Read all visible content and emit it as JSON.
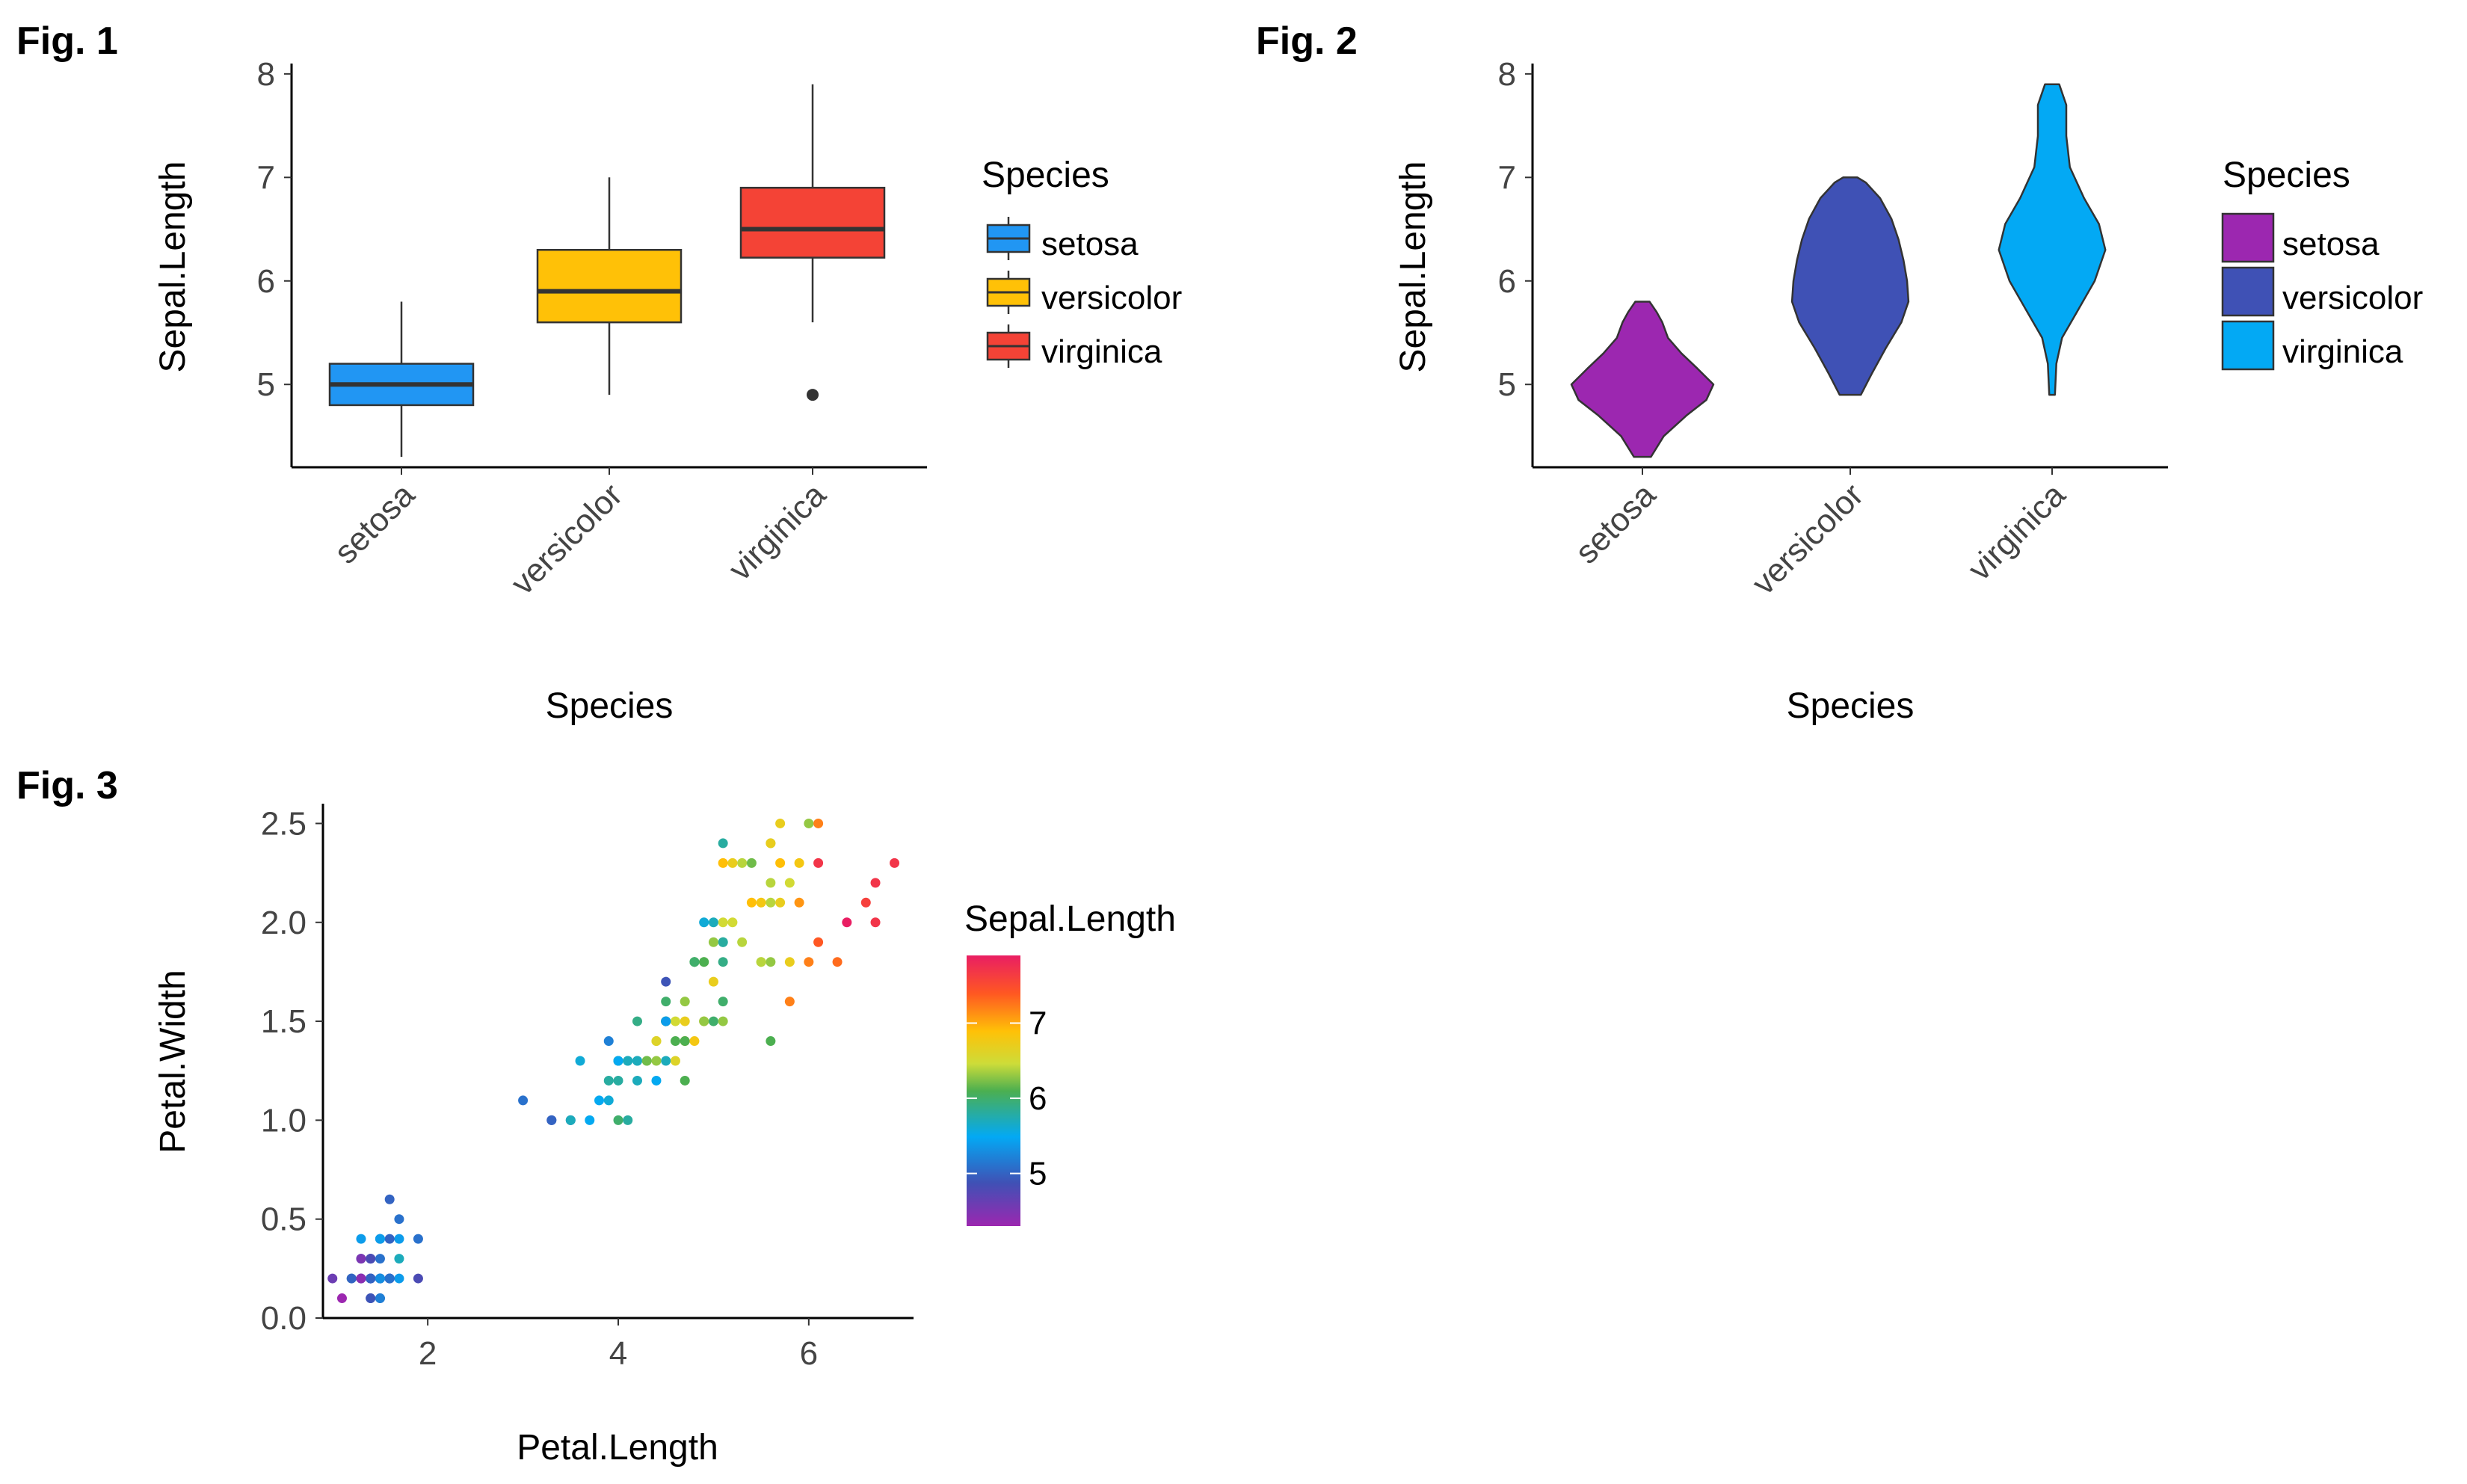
{
  "chart_data": [
    {
      "type": "box",
      "figure_label": "Fig.  1",
      "xlabel": "Species",
      "ylabel": "Sepal.Length",
      "categories": [
        "setosa",
        "versicolor",
        "virginica"
      ],
      "ylim": [
        4.2,
        8.1
      ],
      "yticks": [
        "5",
        "6",
        "7",
        "8"
      ],
      "boxes": [
        {
          "name": "setosa",
          "min": 4.3,
          "q1": 4.8,
          "median": 5.0,
          "q3": 5.2,
          "max": 5.8,
          "outliers": []
        },
        {
          "name": "versicolor",
          "min": 4.9,
          "q1": 5.6,
          "median": 5.9,
          "q3": 6.3,
          "max": 7.0,
          "outliers": []
        },
        {
          "name": "virginica",
          "min": 5.6,
          "q1": 6.225,
          "median": 6.5,
          "q3": 6.9,
          "max": 7.9,
          "outliers": [
            4.9
          ]
        }
      ],
      "colors": [
        "#2196F3",
        "#FFC107",
        "#F44336"
      ],
      "legend": {
        "title": "Species",
        "entries": [
          "setosa",
          "versicolor",
          "virginica"
        ],
        "position": "right"
      }
    },
    {
      "type": "violin",
      "figure_label": "Fig.  2",
      "xlabel": "Species",
      "ylabel": "Sepal.Length",
      "categories": [
        "setosa",
        "versicolor",
        "virginica"
      ],
      "ylim": [
        4.2,
        8.1
      ],
      "yticks": [
        "5",
        "6",
        "7",
        "8"
      ],
      "violins": [
        {
          "name": "setosa",
          "min": 4.3,
          "max": 5.8,
          "profile": [
            [
              4.3,
              0.12
            ],
            [
              4.5,
              0.3
            ],
            [
              4.7,
              0.62
            ],
            [
              4.85,
              0.9
            ],
            [
              5.0,
              1.0
            ],
            [
              5.15,
              0.78
            ],
            [
              5.3,
              0.55
            ],
            [
              5.45,
              0.36
            ],
            [
              5.6,
              0.28
            ],
            [
              5.7,
              0.2
            ],
            [
              5.8,
              0.1
            ]
          ]
        },
        {
          "name": "versicolor",
          "min": 4.9,
          "max": 7.0,
          "profile": [
            [
              4.9,
              0.15
            ],
            [
              5.1,
              0.3
            ],
            [
              5.35,
              0.5
            ],
            [
              5.6,
              0.72
            ],
            [
              5.8,
              0.82
            ],
            [
              6.0,
              0.8
            ],
            [
              6.2,
              0.75
            ],
            [
              6.4,
              0.68
            ],
            [
              6.6,
              0.58
            ],
            [
              6.8,
              0.42
            ],
            [
              6.95,
              0.22
            ],
            [
              7.0,
              0.1
            ]
          ]
        },
        {
          "name": "virginica",
          "min": 4.9,
          "max": 7.9,
          "profile": [
            [
              4.9,
              0.04
            ],
            [
              5.2,
              0.06
            ],
            [
              5.45,
              0.14
            ],
            [
              5.7,
              0.35
            ],
            [
              6.0,
              0.6
            ],
            [
              6.3,
              0.75
            ],
            [
              6.55,
              0.66
            ],
            [
              6.8,
              0.45
            ],
            [
              7.1,
              0.25
            ],
            [
              7.4,
              0.2
            ],
            [
              7.7,
              0.2
            ],
            [
              7.9,
              0.1
            ]
          ]
        }
      ],
      "colors": [
        "#9C27B0",
        "#3F51B5",
        "#03A9F4"
      ],
      "legend": {
        "title": "Species",
        "entries": [
          "setosa",
          "versicolor",
          "virginica"
        ],
        "position": "right"
      }
    },
    {
      "type": "scatter",
      "figure_label": "Fig.  3",
      "xlabel": "Petal.Length",
      "ylabel": "Petal.Width",
      "xlim": [
        0.9,
        7.1
      ],
      "ylim": [
        0.0,
        2.6
      ],
      "xticks": [
        2,
        4,
        6
      ],
      "yticks": [
        "0.0",
        "0.5",
        "1.0",
        "1.5",
        "2.0",
        "2.5"
      ],
      "color_legend": {
        "title": "Sepal.Length",
        "min": 4.3,
        "max": 7.9,
        "ticks": [
          "5",
          "6",
          "7"
        ],
        "position": "right"
      },
      "points": [
        [
          1.4,
          0.2,
          5.1
        ],
        [
          1.4,
          0.2,
          4.9
        ],
        [
          1.3,
          0.2,
          4.7
        ],
        [
          1.5,
          0.2,
          4.6
        ],
        [
          1.4,
          0.2,
          5.0
        ],
        [
          1.7,
          0.4,
          5.4
        ],
        [
          1.4,
          0.3,
          4.6
        ],
        [
          1.5,
          0.2,
          5.0
        ],
        [
          1.4,
          0.2,
          4.4
        ],
        [
          1.5,
          0.1,
          4.9
        ],
        [
          1.5,
          0.2,
          5.4
        ],
        [
          1.6,
          0.2,
          4.8
        ],
        [
          1.4,
          0.1,
          4.8
        ],
        [
          1.1,
          0.1,
          4.3
        ],
        [
          1.2,
          0.2,
          5.8
        ],
        [
          1.5,
          0.4,
          5.7
        ],
        [
          1.3,
          0.4,
          5.4
        ],
        [
          1.4,
          0.3,
          5.1
        ],
        [
          1.7,
          0.3,
          5.7
        ],
        [
          1.5,
          0.3,
          5.1
        ],
        [
          1.7,
          0.2,
          5.4
        ],
        [
          1.5,
          0.4,
          5.1
        ],
        [
          1.0,
          0.2,
          4.6
        ],
        [
          1.7,
          0.5,
          5.1
        ],
        [
          1.9,
          0.2,
          4.8
        ],
        [
          1.6,
          0.2,
          5.0
        ],
        [
          1.6,
          0.4,
          5.0
        ],
        [
          1.5,
          0.2,
          5.2
        ],
        [
          1.4,
          0.2,
          5.2
        ],
        [
          1.6,
          0.2,
          4.7
        ],
        [
          1.6,
          0.2,
          4.8
        ],
        [
          1.5,
          0.4,
          5.4
        ],
        [
          1.5,
          0.1,
          5.2
        ],
        [
          1.4,
          0.2,
          5.5
        ],
        [
          1.5,
          0.2,
          4.9
        ],
        [
          1.2,
          0.2,
          5.0
        ],
        [
          1.3,
          0.2,
          5.5
        ],
        [
          1.4,
          0.1,
          4.9
        ],
        [
          1.3,
          0.2,
          4.4
        ],
        [
          1.5,
          0.2,
          5.1
        ],
        [
          1.3,
          0.3,
          5.0
        ],
        [
          1.3,
          0.3,
          4.5
        ],
        [
          1.3,
          0.2,
          4.4
        ],
        [
          1.6,
          0.6,
          5.0
        ],
        [
          1.9,
          0.4,
          5.1
        ],
        [
          1.4,
          0.3,
          4.8
        ],
        [
          1.6,
          0.2,
          5.1
        ],
        [
          1.4,
          0.2,
          4.6
        ],
        [
          1.5,
          0.2,
          5.3
        ],
        [
          1.4,
          0.2,
          5.0
        ],
        [
          4.7,
          1.4,
          7.0
        ],
        [
          4.5,
          1.5,
          6.4
        ],
        [
          4.9,
          1.5,
          6.9
        ],
        [
          4.0,
          1.3,
          5.5
        ],
        [
          4.6,
          1.5,
          6.5
        ],
        [
          4.5,
          1.3,
          5.7
        ],
        [
          4.7,
          1.6,
          6.3
        ],
        [
          3.3,
          1.0,
          4.9
        ],
        [
          4.6,
          1.3,
          6.6
        ],
        [
          3.9,
          1.4,
          5.2
        ],
        [
          3.5,
          1.0,
          5.0
        ],
        [
          4.2,
          1.5,
          5.9
        ],
        [
          4.0,
          1.0,
          6.0
        ],
        [
          4.7,
          1.4,
          6.1
        ],
        [
          3.6,
          1.3,
          5.6
        ],
        [
          4.4,
          1.4,
          6.7
        ],
        [
          4.5,
          1.5,
          5.6
        ],
        [
          4.1,
          1.0,
          5.8
        ],
        [
          4.5,
          1.5,
          6.2
        ],
        [
          3.9,
          1.1,
          5.6
        ],
        [
          4.8,
          1.8,
          5.9
        ],
        [
          4.0,
          1.3,
          6.1
        ],
        [
          4.9,
          1.5,
          6.3
        ],
        [
          4.7,
          1.2,
          6.1
        ],
        [
          4.3,
          1.3,
          6.4
        ],
        [
          4.4,
          1.4,
          6.6
        ],
        [
          4.8,
          1.4,
          6.8
        ],
        [
          5.0,
          1.7,
          6.7
        ],
        [
          4.5,
          1.5,
          6.0
        ],
        [
          3.5,
          1.0,
          5.7
        ],
        [
          3.8,
          1.1,
          5.5
        ],
        [
          3.7,
          1.0,
          5.5
        ],
        [
          3.9,
          1.2,
          5.8
        ],
        [
          5.1,
          1.6,
          6.0
        ],
        [
          4.5,
          1.5,
          5.4
        ],
        [
          4.5,
          1.6,
          6.0
        ],
        [
          4.7,
          1.5,
          6.7
        ],
        [
          4.4,
          1.3,
          6.3
        ],
        [
          4.1,
          1.3,
          5.6
        ],
        [
          4.0,
          1.3,
          5.5
        ],
        [
          4.4,
          1.2,
          5.5
        ],
        [
          4.6,
          1.4,
          6.1
        ],
        [
          4.0,
          1.2,
          5.8
        ],
        [
          3.3,
          1.0,
          5.0
        ],
        [
          4.2,
          1.3,
          5.6
        ],
        [
          4.2,
          1.2,
          5.7
        ],
        [
          4.2,
          1.3,
          5.7
        ],
        [
          4.3,
          1.3,
          6.2
        ],
        [
          3.0,
          1.1,
          5.1
        ],
        [
          4.1,
          1.3,
          5.7
        ],
        [
          6.0,
          2.5,
          6.3
        ],
        [
          5.1,
          1.9,
          5.8
        ],
        [
          5.9,
          2.1,
          7.1
        ],
        [
          5.6,
          1.8,
          6.3
        ],
        [
          5.8,
          2.2,
          6.5
        ],
        [
          6.6,
          2.1,
          7.6
        ],
        [
          4.5,
          1.7,
          4.9
        ],
        [
          6.3,
          1.8,
          7.3
        ],
        [
          5.8,
          1.8,
          6.7
        ],
        [
          6.1,
          2.5,
          7.2
        ],
        [
          5.1,
          2.0,
          6.5
        ],
        [
          5.3,
          1.9,
          6.4
        ],
        [
          5.5,
          2.1,
          6.8
        ],
        [
          5.0,
          2.0,
          5.7
        ],
        [
          5.1,
          2.4,
          5.8
        ],
        [
          5.3,
          2.3,
          6.4
        ],
        [
          5.5,
          1.8,
          6.5
        ],
        [
          6.7,
          2.2,
          7.7
        ],
        [
          6.9,
          2.3,
          7.7
        ],
        [
          5.0,
          1.5,
          6.0
        ],
        [
          5.7,
          2.3,
          6.9
        ],
        [
          4.9,
          2.0,
          5.6
        ],
        [
          6.7,
          2.0,
          7.7
        ],
        [
          4.9,
          1.8,
          6.3
        ],
        [
          5.7,
          2.1,
          6.7
        ],
        [
          6.0,
          1.8,
          7.2
        ],
        [
          4.8,
          1.8,
          6.2
        ],
        [
          4.9,
          1.8,
          6.1
        ],
        [
          5.6,
          2.1,
          6.4
        ],
        [
          5.8,
          1.6,
          7.2
        ],
        [
          6.1,
          1.9,
          7.4
        ],
        [
          6.4,
          2.0,
          7.9
        ],
        [
          5.6,
          2.2,
          6.4
        ],
        [
          5.1,
          1.5,
          6.3
        ],
        [
          5.6,
          1.4,
          6.1
        ],
        [
          6.1,
          2.3,
          7.7
        ],
        [
          5.6,
          2.4,
          6.3
        ],
        [
          5.5,
          1.8,
          6.4
        ],
        [
          4.8,
          1.8,
          6.0
        ],
        [
          5.4,
          2.1,
          6.9
        ],
        [
          5.6,
          2.4,
          6.7
        ],
        [
          5.1,
          2.3,
          6.9
        ],
        [
          5.1,
          1.9,
          5.8
        ],
        [
          5.9,
          2.3,
          6.8
        ],
        [
          5.7,
          2.5,
          6.7
        ],
        [
          5.2,
          2.3,
          6.7
        ],
        [
          5.0,
          1.9,
          6.3
        ],
        [
          5.2,
          2.0,
          6.5
        ],
        [
          5.4,
          2.3,
          6.2
        ],
        [
          5.1,
          1.8,
          5.9
        ]
      ]
    }
  ]
}
